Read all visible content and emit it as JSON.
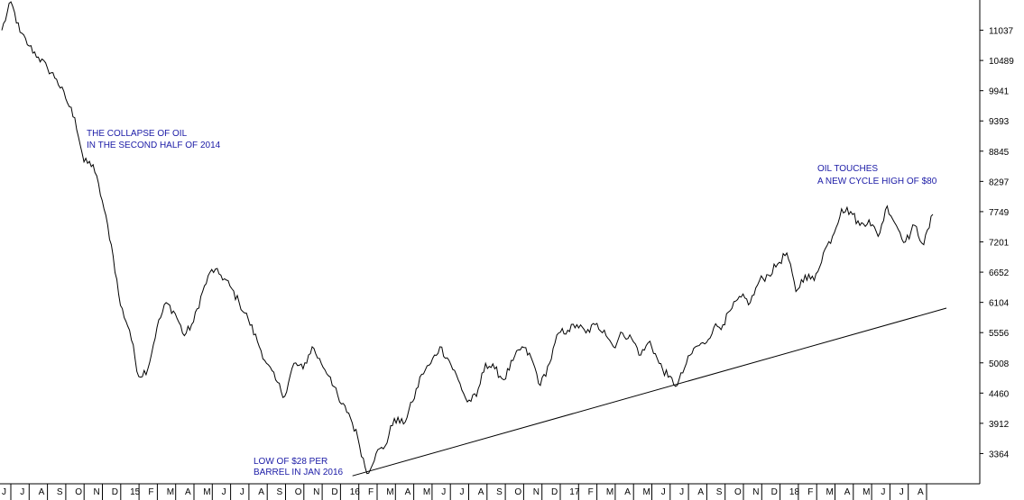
{
  "chart_data": {
    "type": "line",
    "title": "",
    "xlabel": "",
    "ylabel": "",
    "ylim": [
      2816,
      11585
    ],
    "y_ticks": [
      3364,
      3912,
      4460,
      5008,
      5556,
      6104,
      6652,
      7201,
      7749,
      8297,
      8845,
      9393,
      9941,
      10489,
      11037
    ],
    "x_ticks": [
      "J",
      "J",
      "A",
      "S",
      "O",
      "N",
      "D",
      "15",
      "F",
      "M",
      "A",
      "M",
      "J",
      "J",
      "A",
      "S",
      "O",
      "N",
      "D",
      "16",
      "F",
      "M",
      "A",
      "M",
      "J",
      "J",
      "A",
      "S",
      "O",
      "N",
      "D",
      "17",
      "F",
      "M",
      "A",
      "M",
      "J",
      "J",
      "A",
      "S",
      "O",
      "N",
      "D",
      "18",
      "F",
      "M",
      "A",
      "M",
      "J",
      "J",
      "A"
    ],
    "grid": false,
    "legend": "none",
    "colors": {
      "line": "#000000",
      "annotation": "#1a1aa6",
      "axis": "#000000",
      "background": "#ffffff"
    },
    "series": [
      {
        "values": [
          11037,
          11550,
          11000,
          10750,
          10550,
          10350,
          10150,
          9800,
          9450,
          8650,
          8600,
          7950,
          7150,
          6050,
          5600,
          4760,
          4900,
          5650,
          6100,
          5900,
          5500,
          5750,
          6300,
          6700,
          6600,
          6400,
          6100,
          5800,
          5400,
          5000,
          4700,
          4400,
          5000,
          4900,
          5300,
          5000,
          4750,
          4300,
          4100,
          3650,
          3000,
          3364,
          3500,
          4000,
          3900,
          4300,
          4800,
          5000,
          5300,
          5050,
          4700,
          4300,
          4400,
          5000,
          4900,
          4700,
          5050,
          5300,
          5100,
          4600,
          5000,
          5550,
          5600,
          5700,
          5550,
          5700,
          5600,
          5300,
          5550,
          5450,
          5150,
          5400,
          5000,
          4750,
          4600,
          5000,
          5300,
          5350,
          5650,
          5700,
          6000,
          6200,
          6100,
          6500,
          6600,
          6800,
          7000,
          6300,
          6600,
          6500,
          7000,
          7300,
          7800,
          7750,
          7500,
          7600,
          7300,
          7850,
          7500,
          7200,
          7500,
          7150,
          7700
        ]
      }
    ],
    "trendline": {
      "from": {
        "x": "16",
        "y": 2960
      },
      "to": {
        "x": "A",
        "y": 6000
      }
    },
    "annotations": [
      {
        "lines": [
          "THE COLLAPSE OF OIL",
          "IN THE SECOND HALF OF 2014"
        ]
      },
      {
        "lines": [
          "LOW OF $28 PER",
          "BARREL IN JAN 2016"
        ]
      },
      {
        "lines": [
          "OIL TOUCHES",
          "A NEW CYCLE HIGH OF $80"
        ]
      }
    ]
  }
}
